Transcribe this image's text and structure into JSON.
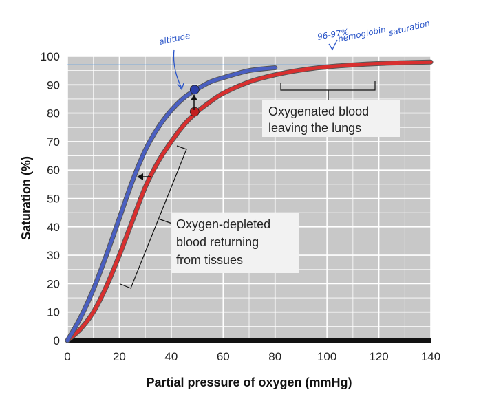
{
  "chart_data": {
    "type": "line",
    "xlabel": "Partial pressure of oxygen (mmHg)",
    "ylabel": "Saturation (%)",
    "xlim": [
      0,
      140
    ],
    "ylim": [
      0,
      100
    ],
    "x_ticks": [
      0,
      20,
      40,
      60,
      80,
      100,
      120,
      140
    ],
    "y_ticks": [
      0,
      10,
      20,
      30,
      40,
      50,
      60,
      70,
      80,
      90,
      100
    ],
    "grid": true,
    "series": [
      {
        "color": "#4a5fc1",
        "x": [
          0,
          5,
          10,
          15,
          20,
          25,
          30,
          35,
          40,
          45,
          50,
          55,
          60,
          70,
          80
        ],
        "y": [
          0,
          8,
          18,
          30,
          43,
          56,
          67,
          75,
          81,
          85.5,
          88.5,
          91,
          92.5,
          95,
          96
        ]
      },
      {
        "color": "#d92f2f",
        "x": [
          0,
          5,
          10,
          15,
          20,
          25,
          30,
          35,
          40,
          45,
          50,
          55,
          60,
          70,
          80,
          90,
          100,
          110,
          120,
          130,
          140
        ],
        "y": [
          0,
          4,
          10,
          19,
          30,
          42,
          54,
          63,
          70,
          76,
          80.5,
          84,
          87,
          91,
          93.5,
          95.2,
          96.3,
          97,
          97.5,
          97.8,
          98
        ]
      }
    ],
    "points": [
      {
        "x": 49,
        "y": 88.3,
        "color": "#2c3fa8"
      },
      {
        "x": 49,
        "y": 80.5,
        "color": "#c21e1e"
      }
    ],
    "reference_line": {
      "y": 97,
      "x_start": 0,
      "x_end": 120,
      "color": "#3a8ee6"
    },
    "annotations": {
      "oxygenated": [
        "Oxygenated blood",
        "leaving the lungs"
      ],
      "depleted": [
        "Oxygen-depleted",
        "blood returning",
        "from tissues"
      ],
      "handwritten": {
        "altitude": "altitude",
        "sat_line1": "96-97%",
        "sat_line2": "hemoglobin",
        "sat_line3": "saturation"
      }
    }
  }
}
